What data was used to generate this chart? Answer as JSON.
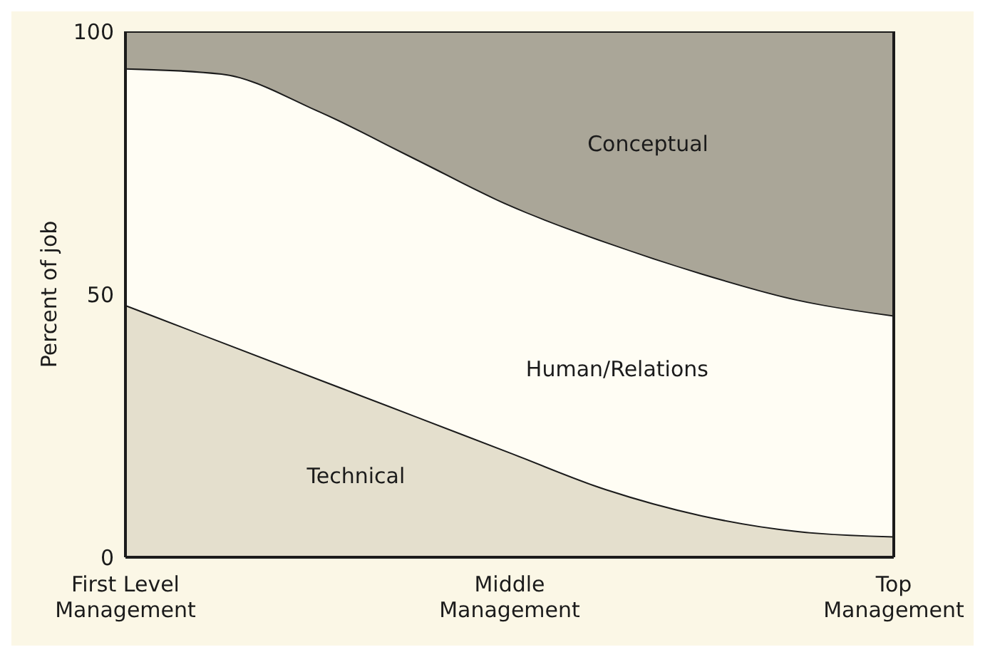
{
  "chart_data": {
    "type": "area",
    "ylabel": "Percent of job",
    "categories": [
      "First Level Management",
      null,
      null,
      null,
      "Middle Management",
      null,
      null,
      null,
      "Top Management"
    ],
    "stacked": true,
    "ylim": [
      0,
      100
    ],
    "yticks": [
      0,
      50,
      100
    ],
    "series": [
      {
        "name": "Technical",
        "color": "#e4dfcd",
        "values": [
          48,
          41,
          34,
          27,
          20,
          13,
          8,
          5,
          4
        ]
      },
      {
        "name": "Human/Relations",
        "color": "#fffdf4",
        "values": [
          45,
          51,
          51,
          49,
          47,
          47,
          46,
          44,
          42
        ]
      },
      {
        "name": "Conceptual",
        "color": "#aaa698",
        "values": [
          7,
          8,
          15,
          24,
          33,
          40,
          46,
          51,
          54
        ]
      }
    ]
  }
}
